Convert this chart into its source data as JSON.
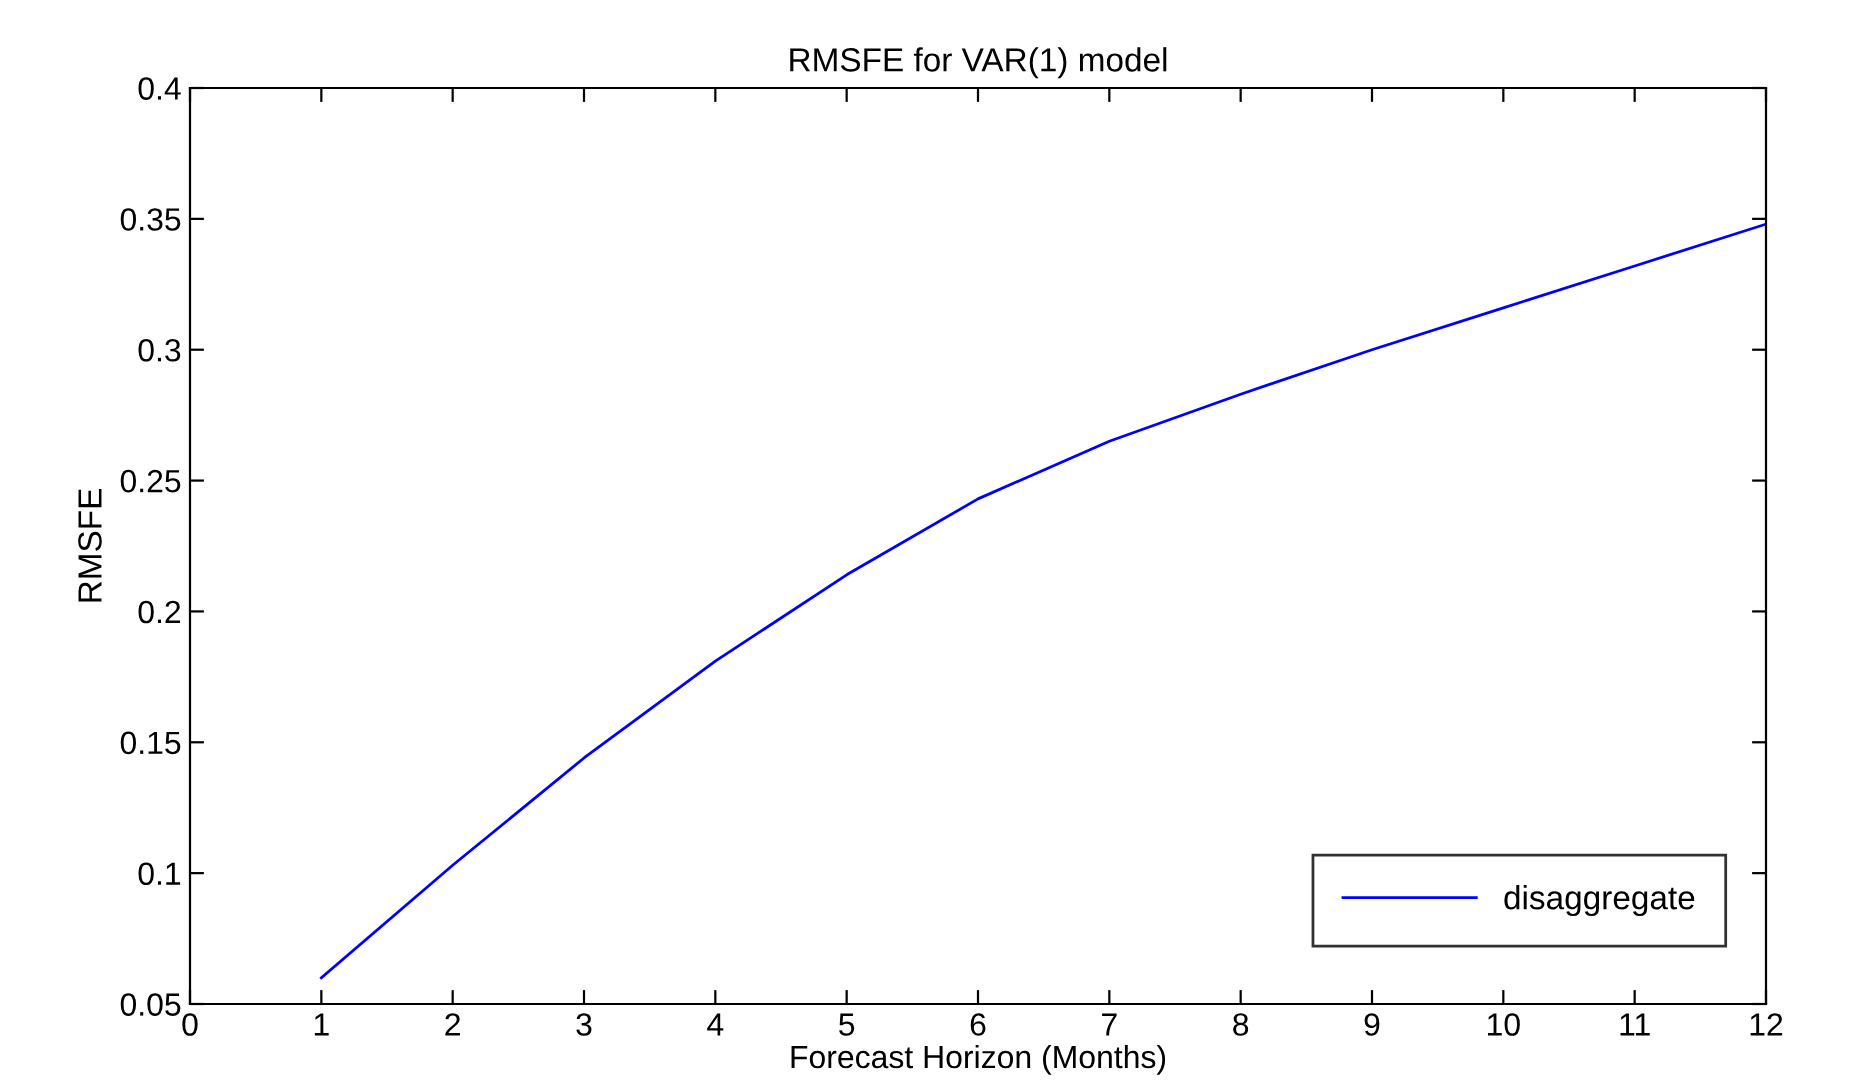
{
  "chart_data": {
    "type": "line",
    "title": "RMSFE for VAR(1) model",
    "xlabel": "Forecast Horizon (Months)",
    "ylabel": "RMSFE",
    "x": [
      1,
      2,
      3,
      4,
      5,
      6,
      7,
      8,
      9,
      10,
      11,
      12
    ],
    "series": [
      {
        "name": "disaggregate",
        "color": "#0000ff",
        "values": [
          0.06,
          0.103,
          0.144,
          0.181,
          0.214,
          0.243,
          0.265,
          0.283,
          0.3,
          0.316,
          0.332,
          0.348
        ]
      }
    ],
    "xlim": [
      0,
      12
    ],
    "xticks": [
      0,
      1,
      2,
      3,
      4,
      5,
      6,
      7,
      8,
      9,
      10,
      11,
      12
    ],
    "ylim": [
      0.05,
      0.4
    ],
    "yticks": [
      0.05,
      0.1,
      0.15,
      0.2,
      0.25,
      0.3,
      0.35,
      0.4
    ],
    "legend": "bottom right",
    "grid": false,
    "marker": "none",
    "line_style": "solid"
  }
}
